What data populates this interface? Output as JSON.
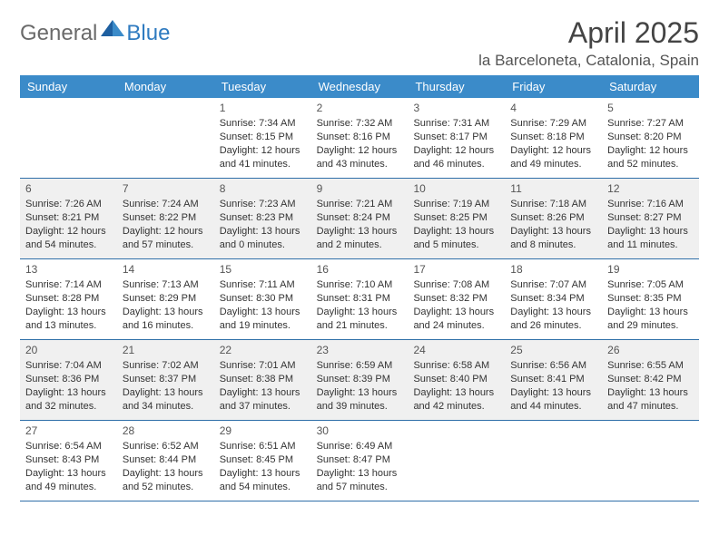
{
  "logo": {
    "part1": "General",
    "part2": "Blue"
  },
  "title": "April 2025",
  "location": "la Barceloneta, Catalonia, Spain",
  "colors": {
    "header_bg": "#3b8bc9",
    "header_text": "#ffffff",
    "divider": "#2f6fa8",
    "shaded_bg": "#f0f0f0",
    "body_text": "#333333",
    "logo_gray": "#6a6a6a",
    "logo_blue": "#2f7bc0"
  },
  "day_headers": [
    "Sunday",
    "Monday",
    "Tuesday",
    "Wednesday",
    "Thursday",
    "Friday",
    "Saturday"
  ],
  "weeks": [
    {
      "shaded": false,
      "days": [
        null,
        null,
        {
          "n": "1",
          "sr": "Sunrise: 7:34 AM",
          "ss": "Sunset: 8:15 PM",
          "dl": "Daylight: 12 hours and 41 minutes."
        },
        {
          "n": "2",
          "sr": "Sunrise: 7:32 AM",
          "ss": "Sunset: 8:16 PM",
          "dl": "Daylight: 12 hours and 43 minutes."
        },
        {
          "n": "3",
          "sr": "Sunrise: 7:31 AM",
          "ss": "Sunset: 8:17 PM",
          "dl": "Daylight: 12 hours and 46 minutes."
        },
        {
          "n": "4",
          "sr": "Sunrise: 7:29 AM",
          "ss": "Sunset: 8:18 PM",
          "dl": "Daylight: 12 hours and 49 minutes."
        },
        {
          "n": "5",
          "sr": "Sunrise: 7:27 AM",
          "ss": "Sunset: 8:20 PM",
          "dl": "Daylight: 12 hours and 52 minutes."
        }
      ]
    },
    {
      "shaded": true,
      "days": [
        {
          "n": "6",
          "sr": "Sunrise: 7:26 AM",
          "ss": "Sunset: 8:21 PM",
          "dl": "Daylight: 12 hours and 54 minutes."
        },
        {
          "n": "7",
          "sr": "Sunrise: 7:24 AM",
          "ss": "Sunset: 8:22 PM",
          "dl": "Daylight: 12 hours and 57 minutes."
        },
        {
          "n": "8",
          "sr": "Sunrise: 7:23 AM",
          "ss": "Sunset: 8:23 PM",
          "dl": "Daylight: 13 hours and 0 minutes."
        },
        {
          "n": "9",
          "sr": "Sunrise: 7:21 AM",
          "ss": "Sunset: 8:24 PM",
          "dl": "Daylight: 13 hours and 2 minutes."
        },
        {
          "n": "10",
          "sr": "Sunrise: 7:19 AM",
          "ss": "Sunset: 8:25 PM",
          "dl": "Daylight: 13 hours and 5 minutes."
        },
        {
          "n": "11",
          "sr": "Sunrise: 7:18 AM",
          "ss": "Sunset: 8:26 PM",
          "dl": "Daylight: 13 hours and 8 minutes."
        },
        {
          "n": "12",
          "sr": "Sunrise: 7:16 AM",
          "ss": "Sunset: 8:27 PM",
          "dl": "Daylight: 13 hours and 11 minutes."
        }
      ]
    },
    {
      "shaded": false,
      "days": [
        {
          "n": "13",
          "sr": "Sunrise: 7:14 AM",
          "ss": "Sunset: 8:28 PM",
          "dl": "Daylight: 13 hours and 13 minutes."
        },
        {
          "n": "14",
          "sr": "Sunrise: 7:13 AM",
          "ss": "Sunset: 8:29 PM",
          "dl": "Daylight: 13 hours and 16 minutes."
        },
        {
          "n": "15",
          "sr": "Sunrise: 7:11 AM",
          "ss": "Sunset: 8:30 PM",
          "dl": "Daylight: 13 hours and 19 minutes."
        },
        {
          "n": "16",
          "sr": "Sunrise: 7:10 AM",
          "ss": "Sunset: 8:31 PM",
          "dl": "Daylight: 13 hours and 21 minutes."
        },
        {
          "n": "17",
          "sr": "Sunrise: 7:08 AM",
          "ss": "Sunset: 8:32 PM",
          "dl": "Daylight: 13 hours and 24 minutes."
        },
        {
          "n": "18",
          "sr": "Sunrise: 7:07 AM",
          "ss": "Sunset: 8:34 PM",
          "dl": "Daylight: 13 hours and 26 minutes."
        },
        {
          "n": "19",
          "sr": "Sunrise: 7:05 AM",
          "ss": "Sunset: 8:35 PM",
          "dl": "Daylight: 13 hours and 29 minutes."
        }
      ]
    },
    {
      "shaded": true,
      "days": [
        {
          "n": "20",
          "sr": "Sunrise: 7:04 AM",
          "ss": "Sunset: 8:36 PM",
          "dl": "Daylight: 13 hours and 32 minutes."
        },
        {
          "n": "21",
          "sr": "Sunrise: 7:02 AM",
          "ss": "Sunset: 8:37 PM",
          "dl": "Daylight: 13 hours and 34 minutes."
        },
        {
          "n": "22",
          "sr": "Sunrise: 7:01 AM",
          "ss": "Sunset: 8:38 PM",
          "dl": "Daylight: 13 hours and 37 minutes."
        },
        {
          "n": "23",
          "sr": "Sunrise: 6:59 AM",
          "ss": "Sunset: 8:39 PM",
          "dl": "Daylight: 13 hours and 39 minutes."
        },
        {
          "n": "24",
          "sr": "Sunrise: 6:58 AM",
          "ss": "Sunset: 8:40 PM",
          "dl": "Daylight: 13 hours and 42 minutes."
        },
        {
          "n": "25",
          "sr": "Sunrise: 6:56 AM",
          "ss": "Sunset: 8:41 PM",
          "dl": "Daylight: 13 hours and 44 minutes."
        },
        {
          "n": "26",
          "sr": "Sunrise: 6:55 AM",
          "ss": "Sunset: 8:42 PM",
          "dl": "Daylight: 13 hours and 47 minutes."
        }
      ]
    },
    {
      "shaded": false,
      "days": [
        {
          "n": "27",
          "sr": "Sunrise: 6:54 AM",
          "ss": "Sunset: 8:43 PM",
          "dl": "Daylight: 13 hours and 49 minutes."
        },
        {
          "n": "28",
          "sr": "Sunrise: 6:52 AM",
          "ss": "Sunset: 8:44 PM",
          "dl": "Daylight: 13 hours and 52 minutes."
        },
        {
          "n": "29",
          "sr": "Sunrise: 6:51 AM",
          "ss": "Sunset: 8:45 PM",
          "dl": "Daylight: 13 hours and 54 minutes."
        },
        {
          "n": "30",
          "sr": "Sunrise: 6:49 AM",
          "ss": "Sunset: 8:47 PM",
          "dl": "Daylight: 13 hours and 57 minutes."
        },
        null,
        null,
        null
      ]
    }
  ]
}
